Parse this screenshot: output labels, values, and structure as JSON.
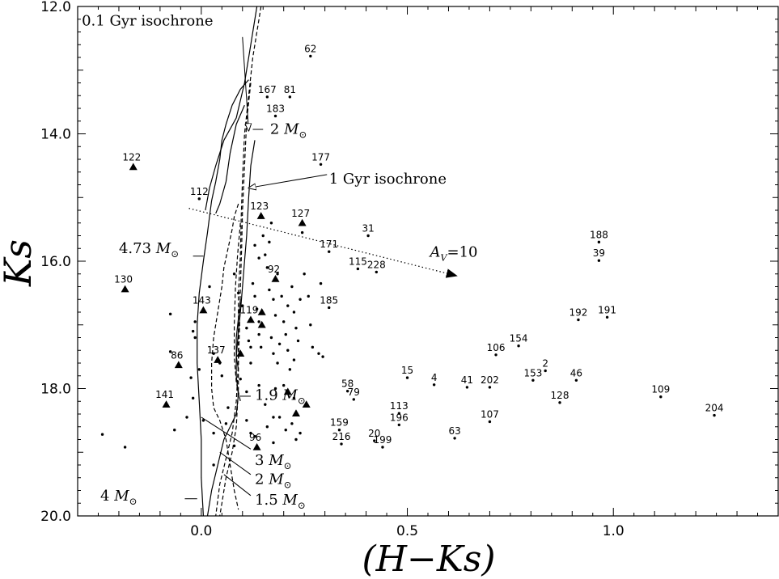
{
  "chart_data": {
    "type": "scatter",
    "xlabel": "(H−Ks)",
    "ylabel": "Ks",
    "xlim": [
      -0.3,
      1.4
    ],
    "ylim": [
      20.0,
      12.0
    ],
    "y_inverted": true,
    "xticks": [
      {
        "value": 0.0,
        "label": "0.0"
      },
      {
        "value": 0.5,
        "label": "0.5"
      },
      {
        "value": 1.0,
        "label": "1.0"
      }
    ],
    "yticks": [
      {
        "value": 12.0,
        "label": "12.0"
      },
      {
        "value": 14.0,
        "label": "14.0"
      },
      {
        "value": 16.0,
        "label": "16.0"
      },
      {
        "value": 18.0,
        "label": "18.0"
      },
      {
        "value": 20.0,
        "label": "20.0"
      }
    ],
    "grid": false,
    "triangles": [
      {
        "label": "122",
        "x": -0.165,
        "y": 14.52
      },
      {
        "label": "130",
        "x": -0.185,
        "y": 16.44
      },
      {
        "label": "143",
        "x": 0.005,
        "y": 16.77
      },
      {
        "label": "86",
        "x": -0.055,
        "y": 17.63
      },
      {
        "label": "141",
        "x": -0.085,
        "y": 18.25
      },
      {
        "label": "137",
        "x": 0.04,
        "y": 17.55
      },
      {
        "label": "123",
        "x": 0.145,
        "y": 15.29
      },
      {
        "label": "127",
        "x": 0.245,
        "y": 15.4
      },
      {
        "label": "92",
        "x": 0.18,
        "y": 16.28
      },
      {
        "label": "119",
        "x": 0.12,
        "y": 16.92
      },
      {
        "label": "96",
        "x": 0.135,
        "y": 18.92
      },
      {
        "label": "",
        "x": 0.147,
        "y": 16.8
      },
      {
        "label": "",
        "x": 0.147,
        "y": 17.0
      },
      {
        "label": "",
        "x": 0.095,
        "y": 17.45
      },
      {
        "label": "",
        "x": 0.21,
        "y": 18.05
      },
      {
        "label": "",
        "x": 0.23,
        "y": 18.39
      },
      {
        "label": "",
        "x": 0.255,
        "y": 18.25
      }
    ],
    "labeled_points": [
      {
        "label": "62",
        "x": 0.265,
        "y": 12.78
      },
      {
        "label": "167",
        "x": 0.16,
        "y": 13.42
      },
      {
        "label": "81",
        "x": 0.215,
        "y": 13.42
      },
      {
        "label": "183",
        "x": 0.18,
        "y": 13.72
      },
      {
        "label": "177",
        "x": 0.29,
        "y": 14.48
      },
      {
        "label": "112",
        "x": -0.005,
        "y": 15.02
      },
      {
        "label": "31",
        "x": 0.405,
        "y": 15.6
      },
      {
        "label": "171",
        "x": 0.31,
        "y": 15.85
      },
      {
        "label": "115",
        "x": 0.38,
        "y": 16.12
      },
      {
        "label": "228",
        "x": 0.425,
        "y": 16.17
      },
      {
        "label": "185",
        "x": 0.31,
        "y": 16.73
      },
      {
        "label": "188",
        "x": 0.965,
        "y": 15.7
      },
      {
        "label": "39",
        "x": 0.965,
        "y": 15.99
      },
      {
        "label": "192",
        "x": 0.915,
        "y": 16.92
      },
      {
        "label": "191",
        "x": 0.985,
        "y": 16.88
      },
      {
        "label": "154",
        "x": 0.77,
        "y": 17.33
      },
      {
        "label": "106",
        "x": 0.715,
        "y": 17.47
      },
      {
        "label": "2",
        "x": 0.835,
        "y": 17.72
      },
      {
        "label": "153",
        "x": 0.805,
        "y": 17.87
      },
      {
        "label": "46",
        "x": 0.91,
        "y": 17.87
      },
      {
        "label": "15",
        "x": 0.5,
        "y": 17.83
      },
      {
        "label": "4",
        "x": 0.565,
        "y": 17.94
      },
      {
        "label": "41",
        "x": 0.645,
        "y": 17.98
      },
      {
        "label": "202",
        "x": 0.7,
        "y": 17.98
      },
      {
        "label": "58",
        "x": 0.355,
        "y": 18.04
      },
      {
        "label": "79",
        "x": 0.37,
        "y": 18.17
      },
      {
        "label": "128",
        "x": 0.87,
        "y": 18.22
      },
      {
        "label": "109",
        "x": 1.115,
        "y": 18.13
      },
      {
        "label": "204",
        "x": 1.245,
        "y": 18.42
      },
      {
        "label": "113",
        "x": 0.48,
        "y": 18.39
      },
      {
        "label": "196",
        "x": 0.48,
        "y": 18.57
      },
      {
        "label": "107",
        "x": 0.7,
        "y": 18.52
      },
      {
        "label": "159",
        "x": 0.335,
        "y": 18.65
      },
      {
        "label": "216",
        "x": 0.34,
        "y": 18.87
      },
      {
        "label": "20",
        "x": 0.42,
        "y": 18.82
      },
      {
        "label": "199",
        "x": 0.44,
        "y": 18.92
      },
      {
        "label": "63",
        "x": 0.615,
        "y": 18.78
      }
    ],
    "unlabeled_points": [
      [
        -0.24,
        18.72
      ],
      [
        -0.185,
        18.92
      ],
      [
        -0.075,
        16.83
      ],
      [
        -0.075,
        17.42
      ],
      [
        -0.065,
        18.65
      ],
      [
        -0.035,
        18.45
      ],
      [
        -0.02,
        17.1
      ],
      [
        -0.015,
        17.2
      ],
      [
        -0.025,
        17.83
      ],
      [
        -0.02,
        18.15
      ],
      [
        -0.015,
        16.95
      ],
      [
        -0.005,
        17.7
      ],
      [
        0.005,
        18.5
      ],
      [
        0.02,
        16.4
      ],
      [
        0.03,
        17.45
      ],
      [
        0.045,
        17.6
      ],
      [
        0.05,
        17.8
      ],
      [
        0.08,
        16.2
      ],
      [
        0.09,
        16.5
      ],
      [
        0.1,
        16.7
      ],
      [
        0.11,
        17.05
      ],
      [
        0.115,
        17.25
      ],
      [
        0.12,
        17.35
      ],
      [
        0.12,
        17.6
      ],
      [
        0.125,
        16.35
      ],
      [
        0.13,
        16.55
      ],
      [
        0.135,
        16.75
      ],
      [
        0.14,
        16.95
      ],
      [
        0.14,
        17.15
      ],
      [
        0.145,
        17.35
      ],
      [
        0.15,
        15.6
      ],
      [
        0.155,
        15.9
      ],
      [
        0.16,
        16.1
      ],
      [
        0.165,
        15.7
      ],
      [
        0.165,
        16.45
      ],
      [
        0.17,
        17.2
      ],
      [
        0.175,
        17.45
      ],
      [
        0.175,
        16.6
      ],
      [
        0.18,
        16.85
      ],
      [
        0.185,
        16.2
      ],
      [
        0.185,
        17.6
      ],
      [
        0.19,
        17.3
      ],
      [
        0.195,
        16.55
      ],
      [
        0.2,
        16.95
      ],
      [
        0.205,
        17.15
      ],
      [
        0.21,
        16.7
      ],
      [
        0.21,
        17.4
      ],
      [
        0.215,
        17.7
      ],
      [
        0.22,
        16.4
      ],
      [
        0.225,
        16.8
      ],
      [
        0.225,
        17.55
      ],
      [
        0.23,
        17.05
      ],
      [
        0.235,
        17.25
      ],
      [
        0.24,
        16.6
      ],
      [
        0.245,
        15.55
      ],
      [
        0.25,
        16.2
      ],
      [
        0.26,
        16.55
      ],
      [
        0.265,
        17.0
      ],
      [
        0.27,
        17.35
      ],
      [
        0.285,
        17.45
      ],
      [
        0.29,
        16.35
      ],
      [
        0.295,
        17.5
      ],
      [
        0.17,
        15.4
      ],
      [
        0.13,
        15.75
      ],
      [
        0.14,
        15.95
      ],
      [
        0.11,
        18.5
      ],
      [
        0.12,
        18.7
      ],
      [
        0.13,
        18.75
      ],
      [
        0.16,
        18.6
      ],
      [
        0.175,
        18.85
      ],
      [
        0.19,
        18.45
      ],
      [
        0.205,
        18.65
      ],
      [
        0.22,
        18.55
      ],
      [
        0.23,
        18.8
      ],
      [
        0.24,
        18.7
      ],
      [
        0.155,
        18.25
      ],
      [
        0.175,
        18.45
      ],
      [
        0.08,
        18.9
      ],
      [
        0.065,
        18.3
      ],
      [
        0.06,
        18.55
      ],
      [
        0.03,
        18.7
      ],
      [
        0.03,
        19.2
      ],
      [
        0.18,
        18.0
      ],
      [
        0.2,
        17.95
      ],
      [
        0.225,
        18.15
      ],
      [
        0.14,
        17.95
      ],
      [
        0.095,
        17.85
      ],
      [
        0.11,
        18.05
      ]
    ],
    "isochrone_0_1Gyr_solid": [
      [
        [
          0.135,
          12.0
        ],
        [
          0.12,
          12.6
        ],
        [
          0.105,
          13.2
        ],
        [
          0.085,
          13.75
        ],
        [
          0.055,
          14.1
        ],
        [
          0.035,
          14.5
        ],
        [
          0.02,
          14.85
        ],
        [
          0.01,
          15.2
        ]
      ],
      [
        [
          0.115,
          13.15
        ],
        [
          0.095,
          13.3
        ],
        [
          0.075,
          13.55
        ],
        [
          0.06,
          13.85
        ],
        [
          0.05,
          14.1
        ],
        [
          0.045,
          14.4
        ],
        [
          0.035,
          14.75
        ],
        [
          0.025,
          15.05
        ],
        [
          0.02,
          15.3
        ],
        [
          0.015,
          15.55
        ],
        [
          0.005,
          16.0
        ],
        [
          -0.005,
          16.5
        ],
        [
          -0.01,
          17.0
        ],
        [
          -0.01,
          17.6
        ],
        [
          -0.005,
          18.2
        ],
        [
          0.0,
          18.8
        ],
        [
          0.0,
          19.4
        ],
        [
          0.005,
          20.0
        ]
      ],
      [
        [
          0.105,
          13.55
        ],
        [
          0.085,
          13.85
        ],
        [
          0.07,
          14.3
        ],
        [
          0.06,
          14.75
        ],
        [
          0.045,
          15.1
        ],
        [
          0.035,
          15.25
        ]
      ]
    ],
    "isochrone_0_1Gyr_dashed": [
      [
        [
          0.145,
          12.0
        ],
        [
          0.125,
          12.8
        ],
        [
          0.115,
          13.4
        ],
        [
          0.105,
          14.0
        ],
        [
          0.1,
          14.7
        ],
        [
          0.097,
          15.3
        ],
        [
          0.095,
          15.9
        ],
        [
          0.09,
          16.5
        ],
        [
          0.09,
          17.2
        ],
        [
          0.09,
          18.0
        ],
        [
          0.085,
          18.6
        ],
        [
          0.075,
          19.0
        ],
        [
          0.06,
          19.4
        ],
        [
          0.05,
          19.8
        ],
        [
          0.045,
          20.0
        ]
      ],
      [
        [
          0.12,
          13.2
        ],
        [
          0.11,
          13.8
        ],
        [
          0.105,
          14.5
        ],
        [
          0.1,
          15.2
        ],
        [
          0.098,
          15.8
        ],
        [
          0.095,
          16.4
        ],
        [
          0.093,
          17.0
        ],
        [
          0.09,
          17.6
        ],
        [
          0.085,
          18.2
        ],
        [
          0.075,
          18.7
        ],
        [
          0.06,
          19.1
        ],
        [
          0.045,
          19.5
        ],
        [
          0.035,
          20.0
        ]
      ]
    ],
    "isochrone_1Gyr_solid": [
      [
        [
          0.13,
          14.1
        ],
        [
          0.12,
          14.5
        ],
        [
          0.115,
          15.0
        ],
        [
          0.11,
          15.6
        ],
        [
          0.105,
          16.0
        ],
        [
          0.1,
          16.4
        ],
        [
          0.095,
          16.8
        ],
        [
          0.09,
          17.1
        ],
        [
          0.085,
          17.5
        ],
        [
          0.085,
          17.8
        ],
        [
          0.09,
          18.1
        ],
        [
          0.085,
          18.4
        ],
        [
          0.07,
          18.6
        ],
        [
          0.055,
          18.8
        ],
        [
          0.04,
          19.2
        ],
        [
          0.025,
          19.6
        ],
        [
          0.015,
          20.0
        ]
      ],
      [
        [
          0.095,
          16.6
        ],
        [
          0.09,
          16.9
        ],
        [
          0.085,
          17.2
        ],
        [
          0.085,
          17.5
        ],
        [
          0.09,
          17.7
        ]
      ]
    ],
    "isochrone_1Gyr_dashed": [
      [
        [
          0.09,
          15.1
        ],
        [
          0.08,
          15.3
        ],
        [
          0.075,
          15.5
        ],
        [
          0.065,
          15.8
        ],
        [
          0.055,
          16.1
        ],
        [
          0.05,
          16.4
        ],
        [
          0.04,
          16.8
        ],
        [
          0.03,
          17.2
        ],
        [
          0.025,
          17.6
        ],
        [
          0.025,
          18.0
        ],
        [
          0.03,
          18.3
        ],
        [
          0.045,
          18.5
        ],
        [
          0.06,
          18.8
        ],
        [
          0.07,
          19.2
        ],
        [
          0.08,
          19.6
        ],
        [
          0.09,
          19.9
        ]
      ],
      [
        [
          0.095,
          15.4
        ],
        [
          0.088,
          15.9
        ],
        [
          0.083,
          16.4
        ],
        [
          0.08,
          17.0
        ],
        [
          0.08,
          17.5
        ],
        [
          0.085,
          17.9
        ],
        [
          0.095,
          18.2
        ]
      ]
    ],
    "reddening_vector": {
      "from": [
        -0.03,
        15.17
      ],
      "to": [
        0.62,
        16.23
      ]
    },
    "annotations": [
      {
        "id": "iso01",
        "text": "0.1 Gyr isochrone",
        "text_x": -0.29,
        "text_y": 12.3,
        "arrow_from": [
          0.1,
          12.48
        ],
        "arrow_to": [
          0.115,
          13.95
        ]
      },
      {
        "id": "iso1",
        "text": "1 Gyr isochrone",
        "text_x": 0.31,
        "text_y": 14.78,
        "arrow_from": [
          0.305,
          14.64
        ],
        "arrow_to": [
          0.115,
          14.85
        ]
      },
      {
        "id": "av",
        "text": "A",
        "sub": "V",
        "suffix": "=10",
        "text_x": 0.555,
        "text_y": 15.93
      },
      {
        "id": "m2top",
        "text": "2 M",
        "text_x": 0.167,
        "text_y": 14.0,
        "tick_from": [
          0.125,
          13.93
        ],
        "tick_to": [
          0.15,
          13.93
        ]
      },
      {
        "id": "m473",
        "text": "4.73 M",
        "text_x": -0.2,
        "text_y": 15.87,
        "tick_from": [
          -0.02,
          15.92
        ],
        "tick_to": [
          0.005,
          15.92
        ]
      },
      {
        "id": "m19",
        "text": "1.9 M",
        "text_x": 0.13,
        "text_y": 18.18,
        "tick_from": [
          0.09,
          18.12
        ],
        "tick_to": [
          0.12,
          18.12
        ]
      },
      {
        "id": "m3",
        "text": "3 M",
        "text_x": 0.13,
        "text_y": 19.2,
        "line_from": [
          0.0,
          18.45
        ],
        "line_to": [
          0.12,
          18.95
        ]
      },
      {
        "id": "m2",
        "text": "2 M",
        "text_x": 0.13,
        "text_y": 19.5,
        "line_from": [
          0.045,
          19.0
        ],
        "line_to": [
          0.12,
          19.35
        ]
      },
      {
        "id": "m15",
        "text": "1.5 M",
        "text_x": 0.13,
        "text_y": 19.82,
        "line_from": [
          0.055,
          19.35
        ],
        "line_to": [
          0.12,
          19.68
        ]
      },
      {
        "id": "m4",
        "text": "4 M",
        "text_x": -0.245,
        "text_y": 19.76,
        "tick_from": [
          -0.04,
          19.73
        ],
        "tick_to": [
          -0.01,
          19.73
        ]
      }
    ]
  }
}
